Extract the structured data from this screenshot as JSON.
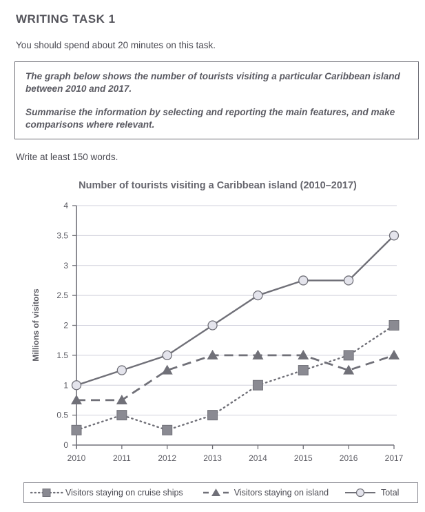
{
  "heading": "WRITING TASK 1",
  "instruction": "You should spend about 20 minutes on this task.",
  "task": {
    "paragraph1": "The graph below shows the number of tourists visiting a particular Caribbean island between 2010 and 2017.",
    "paragraph2": "Summarise the information by selecting and reporting the main features, and make comparisons where relevant."
  },
  "word_count_note": "Write at least 150 words.",
  "colors": {
    "line": "#707078",
    "marker_fill_square": "#8a8a92",
    "marker_fill_circle": "#e4e4ec",
    "grid": "#d0d0dc",
    "axis": "#707078"
  },
  "chart_data": {
    "type": "line",
    "title": "Number of tourists visiting a Caribbean island (2010–2017)",
    "xlabel": "",
    "ylabel": "Millions of visitors",
    "x": [
      "2010",
      "2011",
      "2012",
      "2013",
      "2014",
      "2015",
      "2016",
      "2017"
    ],
    "ylim": [
      0,
      4
    ],
    "yticks": [
      "0",
      "0.5",
      "1",
      "1.5",
      "2",
      "2.5",
      "3",
      "3.5",
      "4"
    ],
    "ytick_values": [
      0,
      0.5,
      1,
      1.5,
      2,
      2.5,
      3,
      3.5,
      4
    ],
    "grid": true,
    "legend_position": "bottom",
    "series": [
      {
        "name": "Visitors staying on cruise ships",
        "style": "dotted",
        "marker": "square",
        "values": [
          0.25,
          0.5,
          0.25,
          0.5,
          1,
          1.25,
          1.5,
          2
        ]
      },
      {
        "name": "Visitors staying on island",
        "style": "dashed",
        "marker": "triangle",
        "values": [
          0.75,
          0.75,
          1.25,
          1.5,
          1.5,
          1.5,
          1.25,
          1.5
        ]
      },
      {
        "name": "Total",
        "style": "solid",
        "marker": "circle",
        "values": [
          1,
          1.25,
          1.5,
          2,
          2.5,
          2.75,
          2.75,
          3.5
        ]
      }
    ]
  }
}
